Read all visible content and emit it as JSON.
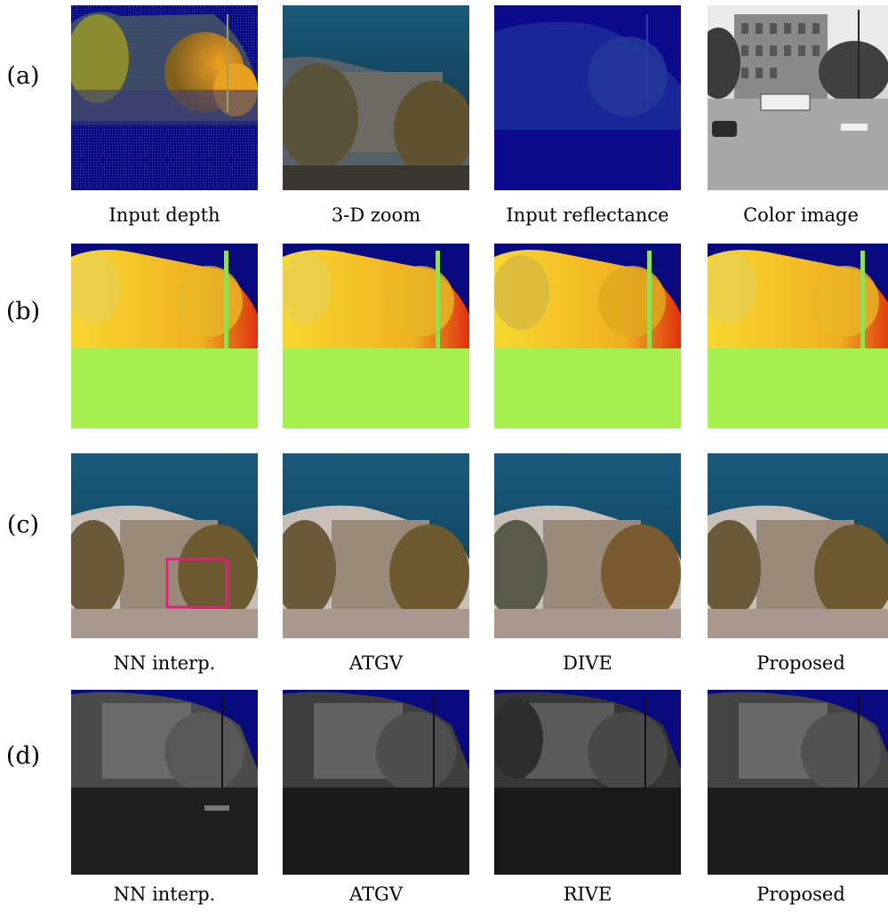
{
  "rows": [
    {
      "label": "(a)",
      "captions": [
        "Input depth",
        "3-D zoom",
        "Input reflectance",
        "Color image"
      ]
    },
    {
      "label": "(b)",
      "captions": []
    },
    {
      "label": "(c)",
      "captions": [
        "NN interp.",
        "ATGV",
        "DIVE",
        "Proposed"
      ]
    },
    {
      "label": "(d)",
      "captions": [
        "NN interp.",
        "ATGV",
        "RIVE",
        "Proposed"
      ]
    }
  ],
  "colors": {
    "navy_background": "#0a0a80",
    "highlight_box": "#e0207a",
    "ground_green": "#a8f050",
    "depth_yellow": "#f8d020",
    "depth_red": "#e03010",
    "sky_teal": "#1a5870"
  }
}
